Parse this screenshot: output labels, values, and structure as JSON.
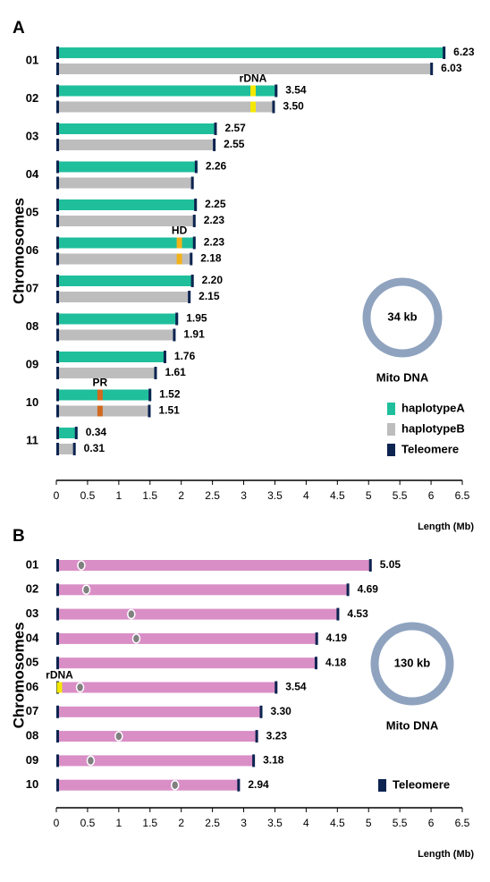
{
  "chart_data": [
    {
      "type": "bar",
      "panel": "A",
      "ylabel": "Chromosomes",
      "xlabel": "Length (Mb)",
      "xlim": [
        0,
        6.5
      ],
      "xticks": [
        0,
        0.5,
        1,
        1.5,
        2,
        2.5,
        3,
        3.5,
        4,
        4.5,
        5,
        5.5,
        6,
        6.5
      ],
      "categories": [
        "01",
        "02",
        "03",
        "04",
        "05",
        "06",
        "07",
        "08",
        "09",
        "10",
        "11"
      ],
      "series": [
        {
          "name": "haplotypeA",
          "color": "#1fbf9c",
          "values": [
            6.23,
            3.54,
            2.57,
            2.26,
            2.25,
            2.23,
            2.2,
            1.95,
            1.76,
            1.52,
            0.34
          ],
          "value_labels": [
            "6.23",
            "3.54",
            "2.57",
            "2.26",
            "2.25",
            "2.23",
            "2.20",
            "1.95",
            "1.76",
            "1.52",
            "0.34"
          ]
        },
        {
          "name": "haplotypeB",
          "color": "#bdbdbd",
          "values": [
            6.03,
            3.5,
            2.55,
            2.2,
            2.23,
            2.18,
            2.15,
            1.91,
            1.61,
            1.51,
            0.31
          ],
          "value_labels": [
            "6.03",
            "3.50",
            "2.55",
            null,
            "2.23",
            "2.18",
            "2.15",
            "1.91",
            "1.61",
            "1.51",
            "0.31"
          ]
        }
      ],
      "features": [
        {
          "label": "rDNA",
          "color": "#f5e800",
          "x": [
            null,
            3.15,
            null,
            null,
            null,
            null,
            null,
            null,
            null,
            null,
            null
          ]
        },
        {
          "label": "HD",
          "color": "#f2b21a",
          "x": [
            null,
            null,
            null,
            null,
            null,
            1.97,
            null,
            null,
            null,
            null,
            null
          ]
        },
        {
          "label": "PR",
          "color": "#d2691e",
          "x": [
            null,
            null,
            null,
            null,
            null,
            null,
            null,
            null,
            null,
            0.7,
            null
          ]
        }
      ],
      "telomere": {
        "name": "Teleomere",
        "color": "#0d2451"
      },
      "mito": {
        "size_label": "34 kb",
        "label": "Mito DNA"
      }
    },
    {
      "type": "bar",
      "panel": "B",
      "ylabel": "Chromosomes",
      "xlabel": "Length (Mb)",
      "xlim": [
        0,
        6.5
      ],
      "xticks": [
        0,
        0.5,
        1,
        1.5,
        2,
        2.5,
        3,
        3.5,
        4,
        4.5,
        5,
        5.5,
        6,
        6.5
      ],
      "categories": [
        "01",
        "02",
        "03",
        "04",
        "05",
        "06",
        "07",
        "08",
        "09",
        "10"
      ],
      "series": [
        {
          "color": "#d98ec6",
          "values": [
            5.05,
            4.69,
            4.53,
            4.19,
            4.18,
            3.54,
            3.3,
            3.23,
            3.18,
            2.94
          ],
          "value_labels": [
            "5.05",
            "4.69",
            "4.53",
            "4.19",
            "4.18",
            "3.54",
            "3.30",
            "3.23",
            "3.18",
            "2.94"
          ]
        }
      ],
      "features": [
        {
          "label": "rDNA",
          "color": "#f5e800",
          "x": [
            null,
            null,
            null,
            null,
            null,
            0.05,
            null,
            null,
            null,
            null
          ]
        }
      ],
      "centromeres": {
        "color": "#808080",
        "x": [
          0.4,
          0.48,
          1.2,
          1.28,
          null,
          0.38,
          null,
          1.0,
          0.55,
          1.9
        ]
      },
      "telomere": {
        "name": "Teleomere",
        "color": "#0d2451"
      },
      "mito": {
        "size_label": "130 kb",
        "label": "Mito DNA"
      }
    }
  ]
}
